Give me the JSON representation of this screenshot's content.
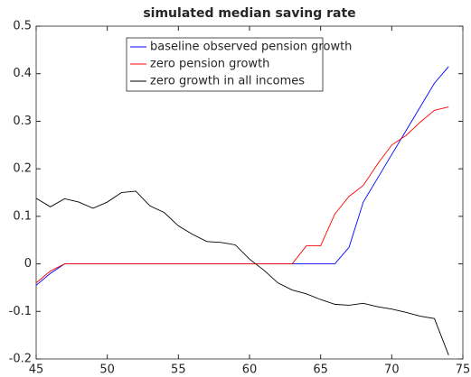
{
  "chart_data": {
    "type": "line",
    "title": "simulated median saving rate",
    "x": [
      45,
      46,
      47,
      48,
      49,
      50,
      51,
      52,
      53,
      54,
      55,
      56,
      57,
      58,
      59,
      60,
      61,
      62,
      63,
      64,
      65,
      66,
      67,
      68,
      69,
      70,
      71,
      72,
      73,
      74
    ],
    "series": [
      {
        "name": "baseline observed pension growth",
        "color": "#0000ff",
        "values": [
          -0.045,
          -0.02,
          0,
          0,
          0,
          0,
          0,
          0,
          0,
          0,
          0,
          0,
          0,
          0,
          0,
          0,
          0,
          0,
          0,
          0,
          0,
          0,
          0.035,
          0.13,
          0.18,
          0.23,
          0.28,
          0.33,
          0.38,
          0.415
        ]
      },
      {
        "name": "zero pension growth",
        "color": "#ff0000",
        "values": [
          -0.04,
          -0.015,
          0,
          0,
          0,
          0,
          0,
          0,
          0,
          0,
          0,
          0,
          0,
          0,
          0,
          0,
          0,
          0,
          0,
          0.038,
          0.038,
          0.105,
          0.142,
          0.165,
          0.21,
          0.25,
          0.27,
          0.298,
          0.323,
          0.33
        ]
      },
      {
        "name": "zero growth in all incomes",
        "color": "#000000",
        "values": [
          0.138,
          0.12,
          0.137,
          0.13,
          0.117,
          0.13,
          0.15,
          0.153,
          0.122,
          0.108,
          0.08,
          0.062,
          0.047,
          0.045,
          0.04,
          0.01,
          -0.013,
          -0.04,
          -0.055,
          -0.063,
          -0.075,
          -0.085,
          -0.087,
          -0.083,
          -0.09,
          -0.095,
          -0.102,
          -0.11,
          -0.115,
          -0.192
        ]
      }
    ],
    "xlim": [
      45,
      75
    ],
    "xticks": [
      45,
      50,
      55,
      60,
      65,
      70,
      75
    ],
    "ylim": [
      -0.2,
      0.5
    ],
    "yticks": [
      -0.2,
      -0.1,
      0,
      0.1,
      0.2,
      0.3,
      0.4,
      0.5
    ],
    "legend": "top"
  }
}
